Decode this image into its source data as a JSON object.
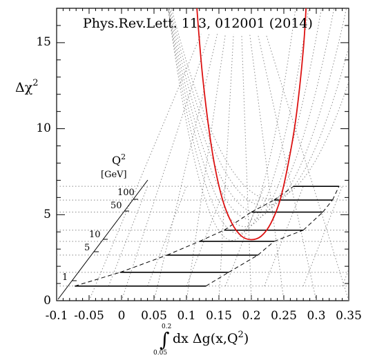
{
  "chart_data": {
    "type": "line",
    "annotation": "Phys.Rev.Lett. 113, 012001 (2014)",
    "xlabel": {
      "prefix": "dx Δg(x,Q",
      "sup": "2",
      "suffix": ")",
      "int_upper": "0.2",
      "int_lower": "0.05"
    },
    "ylabel": {
      "base": "Δχ",
      "sup": "2"
    },
    "xlim": [
      -0.1,
      0.35
    ],
    "ylim": [
      0,
      17
    ],
    "x_ticks": [
      "-0.1",
      "-0.05",
      "0",
      "0.05",
      "0.1",
      "0.15",
      "0.2",
      "0.25",
      "0.3",
      "0.35"
    ],
    "y_ticks": [
      "0",
      "5",
      "10",
      "15"
    ],
    "q2_axis": {
      "title": "Q",
      "title_sup": "2",
      "unit": "[GeV]",
      "labels": [
        "1",
        "5",
        "10",
        "50",
        "100"
      ]
    },
    "series": [
      {
        "color": "#dd1111",
        "x": [
          0.115,
          0.125,
          0.14,
          0.155,
          0.17,
          0.185,
          0.2,
          0.215,
          0.23,
          0.245,
          0.26,
          0.27,
          0.28,
          0.285
        ],
        "y": [
          17.5,
          13.0,
          8.6,
          5.95,
          4.5,
          3.75,
          3.55,
          3.75,
          4.5,
          5.95,
          8.6,
          11.0,
          14.6,
          17.5
        ]
      }
    ],
    "q2_bands": [
      {
        "y": 0.85,
        "x_start": -0.072,
        "x_end": 0.13
      },
      {
        "y": 1.65,
        "x_start": -0.002,
        "x_end": 0.165
      },
      {
        "y": 2.65,
        "x_start": 0.07,
        "x_end": 0.21
      },
      {
        "y": 3.45,
        "x_start": 0.12,
        "x_end": 0.235
      },
      {
        "y": 4.1,
        "x_start": 0.158,
        "x_end": 0.28
      },
      {
        "y": 5.15,
        "x_start": 0.2,
        "x_end": 0.31
      },
      {
        "y": 5.85,
        "x_start": 0.235,
        "x_end": 0.325
      },
      {
        "y": 6.65,
        "x_start": 0.265,
        "x_end": 0.335
      }
    ],
    "grid": "dotted perspective",
    "legend": "none"
  }
}
